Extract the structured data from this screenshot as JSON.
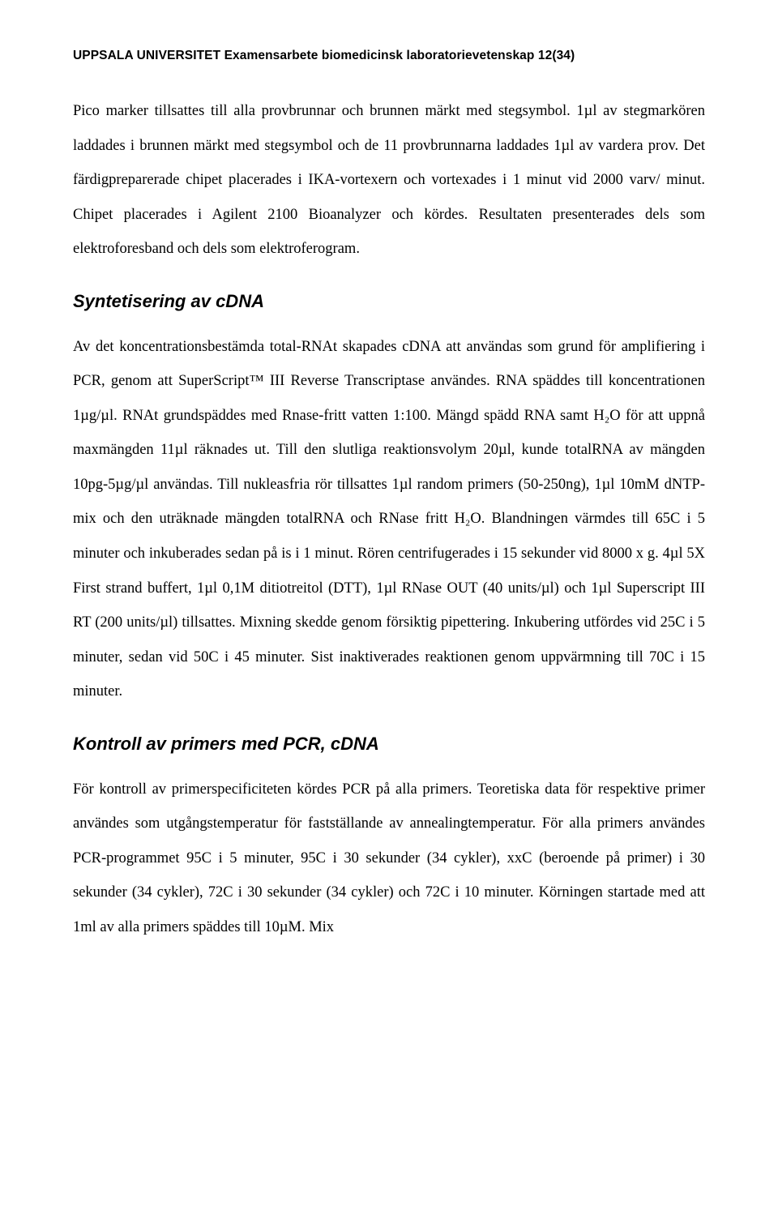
{
  "header": {
    "text": "UPPSALA UNIVERSITET Examensarbete biomedicinsk laboratorievetenskap 12(34)"
  },
  "paragraphs": {
    "p1": "Pico marker tillsattes till alla provbrunnar och brunnen märkt med stegsymbol. 1µl av stegmarkören laddades i brunnen märkt med stegsymbol och de 11 provbrunnarna laddades 1µl av vardera prov. Det färdigpreparerade chipet placerades i IKA-vortexern och vortexades i 1 minut vid 2000 varv/ minut. Chipet placerades i Agilent 2100 Bioanalyzer och kördes. Resultaten presenterades dels som elektroforesband och dels som elektroferogram.",
    "h1": "Syntetisering av cDNA",
    "p2": "Av det koncentrationsbestämda total-RNAt skapades cDNA att användas som grund för amplifiering i PCR, genom att SuperScript™ III Reverse Transcriptase användes. RNA späddes till koncentrationen 1µg/µl. RNAt grundspäddes med Rnase-fritt vatten 1:100. Mängd spädd RNA samt H₂O för att uppnå maxmängden 11µl räknades ut. Till den slutliga reaktionsvolym 20µl, kunde totalRNA av mängden 10pg-5µg/µl användas. Till nukleasfria rör tillsattes 1µl random primers (50-250ng), 1µl 10mM dNTP-mix och den uträknade mängden totalRNA och RNase fritt H₂O. Blandningen värmdes till 65C i 5 minuter och inkuberades sedan på is i 1 minut. Rören centrifugerades i 15 sekunder vid 8000 x g. 4µl 5X First strand buffert, 1µl 0,1M ditiotreitol (DTT), 1µl RNase OUT (40 units/µl) och 1µl Superscript III RT (200 units/µl) tillsattes. Mixning skedde genom försiktig pipettering. Inkubering utfördes vid 25C i 5 minuter, sedan vid 50C i 45 minuter. Sist inaktiverades reaktionen genom uppvärmning till 70C i 15 minuter.",
    "h2": "Kontroll av primers med PCR, cDNA",
    "p3": "För kontroll av primerspecificiteten kördes PCR på alla primers. Teoretiska data för respektive primer användes som utgångstemperatur för fastställande av annealingtemperatur. För alla primers användes PCR-programmet 95C i 5 minuter, 95C i 30 sekunder (34 cykler), xxC (beroende på primer) i 30 sekunder (34 cykler), 72C i 30 sekunder (34 cykler) och 72C i 10 minuter. Körningen startade med att 1ml av alla primers späddes till 10µM. Mix"
  }
}
